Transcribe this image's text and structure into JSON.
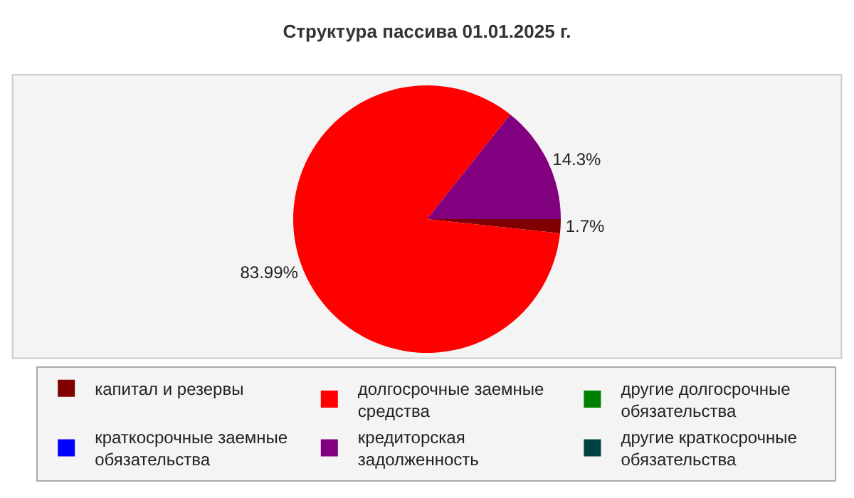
{
  "chart_data": {
    "type": "pie",
    "title": "Структура пассива 01.01.2025 г.",
    "categories": [
      "капитал и резервы",
      "долгосрочные заемные средства",
      "другие долгосрочные обязательства",
      "краткосрочные заемные обязательства",
      "кредиторская задолженность",
      "другие краткосрочные обязательства"
    ],
    "values": [
      1.7,
      83.99,
      0,
      0,
      14.3,
      0
    ],
    "colors": [
      "#800000",
      "#ff0000",
      "#008000",
      "#0000ff",
      "#800080",
      "#004040"
    ],
    "value_labels": [
      "1.7%",
      "83.99%",
      null,
      null,
      "14.3%",
      null
    ],
    "legend": "bottom"
  }
}
